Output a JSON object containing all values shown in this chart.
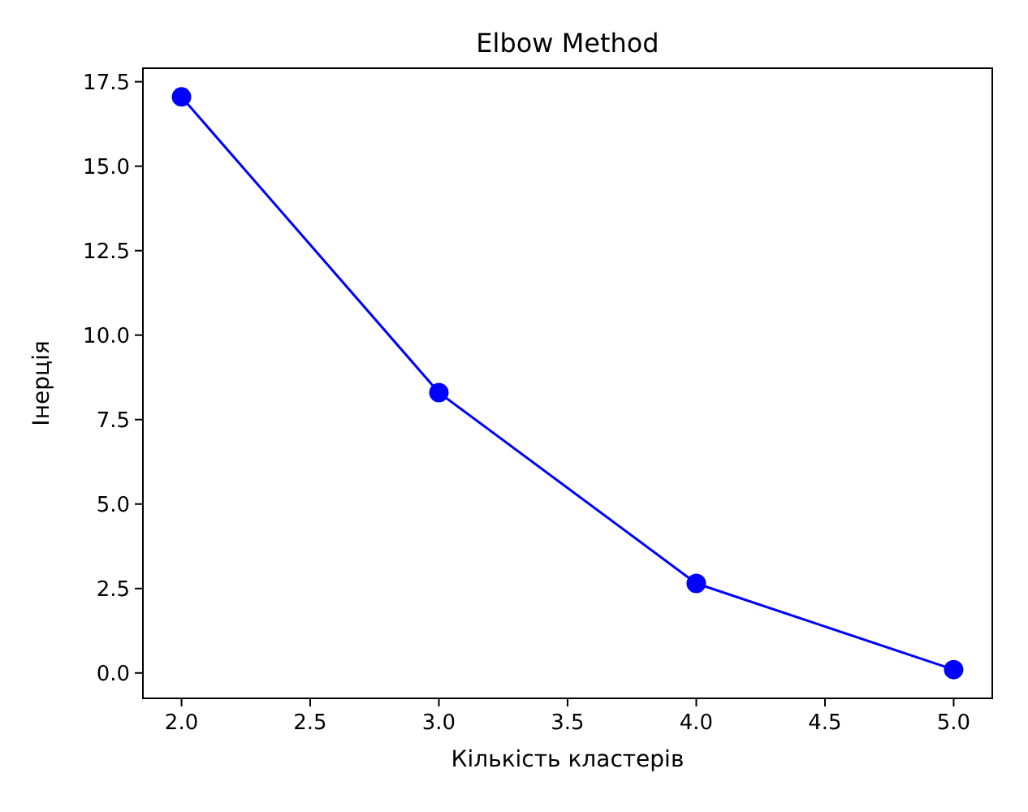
{
  "chart_data": {
    "type": "line",
    "title": "Elbow Method",
    "xlabel": "Кількість кластерів",
    "ylabel": "Інерція",
    "x": [
      2,
      3,
      4,
      5
    ],
    "series": [
      {
        "color": "#0000ff",
        "values": [
          17.05,
          8.3,
          2.65,
          0.1
        ]
      }
    ],
    "marker": "circle",
    "line_style": "solid",
    "grid": false,
    "xlim": [
      1.85,
      5.15
    ],
    "xticks": [
      {
        "value": 2,
        "label": "2.0"
      },
      {
        "value": 2.5,
        "label": "2.5"
      },
      {
        "value": 3,
        "label": "3.0"
      },
      {
        "value": 3.5,
        "label": "3.5"
      },
      {
        "value": 4,
        "label": "4.0"
      },
      {
        "value": 4.5,
        "label": "4.5"
      },
      {
        "value": 5,
        "label": "5.0"
      }
    ],
    "ylim": [
      -0.75,
      17.9
    ],
    "yticks": [
      {
        "value": 0,
        "label": "0.0"
      },
      {
        "value": 2.5,
        "label": "2.5"
      },
      {
        "value": 5,
        "label": "5.0"
      },
      {
        "value": 7.5,
        "label": "7.5"
      },
      {
        "value": 10,
        "label": "10.0"
      },
      {
        "value": 12.5,
        "label": "12.5"
      },
      {
        "value": 15,
        "label": "15.0"
      },
      {
        "value": 17.5,
        "label": "17.5"
      }
    ]
  }
}
